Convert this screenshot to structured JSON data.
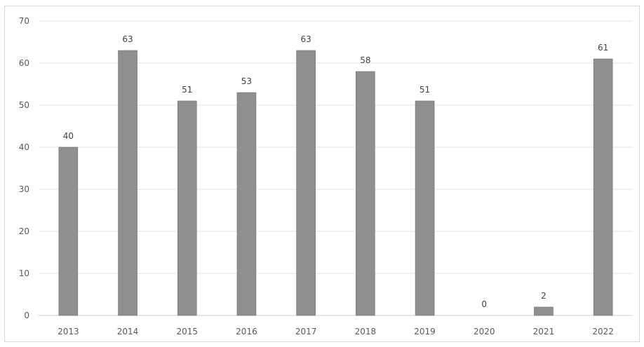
{
  "chart_data": {
    "type": "bar",
    "categories": [
      "2013",
      "2014",
      "2015",
      "2016",
      "2017",
      "2018",
      "2019",
      "2020",
      "2021",
      "2022"
    ],
    "values": [
      40,
      63,
      51,
      53,
      63,
      58,
      51,
      0,
      2,
      61
    ],
    "data_labels": [
      "40",
      "63",
      "51",
      "53",
      "63",
      "58",
      "51",
      "0",
      "2",
      "61"
    ],
    "ylim": [
      0,
      70
    ],
    "yticks": [
      0,
      10,
      20,
      30,
      40,
      50,
      60,
      70
    ],
    "grid": "horizontal",
    "legend": "none",
    "colors": {
      "bar": "#8f8f8f",
      "bar_edge": "#6f6f6f",
      "grid": "#e3e3e3",
      "axis": "#cfcfcf"
    }
  }
}
